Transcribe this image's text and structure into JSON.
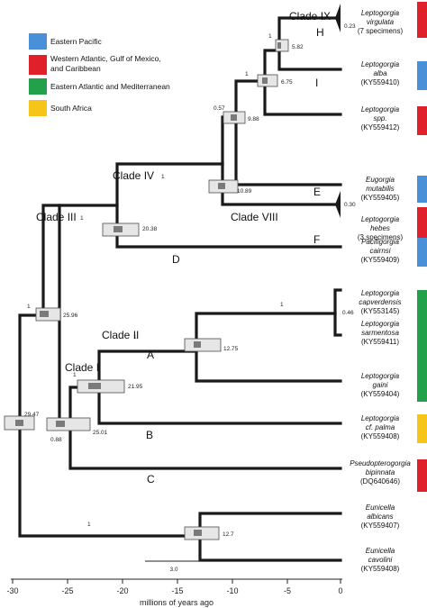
{
  "legend": [
    {
      "color": "#4a90d9",
      "label": "Eastern Pacific"
    },
    {
      "color": "#e0202b",
      "label": "Western Atlantic, Gulf of Mexico,"
    },
    {
      "color": "#e0202b",
      "label": "and Caribbean"
    },
    {
      "color": "#22a04a",
      "label": "Eastern Atlantic and Mediterranean"
    },
    {
      "color": "#f5c51a",
      "label": "South Africa"
    }
  ],
  "clades": {
    "ix": "Clade IX",
    "iv": "Clade IV",
    "iii": "Clade III",
    "viii": "Clade VIII",
    "ii": "Clade II",
    "i": "Clade I"
  },
  "letters": {
    "h": "H",
    "i": "I",
    "e": "E",
    "f": "F",
    "d": "D",
    "a": "A",
    "b": "B",
    "c": "C"
  },
  "node_ages": {
    "n582": "5.82",
    "n675": "6.75",
    "n988": "9.88",
    "n1089": "10.89",
    "n2038": "20.38",
    "n2596": "25.96",
    "n2947": "29.47",
    "n1275": "12.75",
    "n2195": "21.95",
    "n2501": "25.01",
    "n127": "12.7",
    "n023": "0.23",
    "n030": "0.30",
    "n046": "0.46"
  },
  "support": {
    "s1_ix": "1",
    "s1_c": "1",
    "s057": "0.57",
    "s1_iv": "1",
    "s1_iii": "1",
    "s1_root": "1",
    "s1_2596": "1",
    "s1_ii": "1",
    "s1_i": "1",
    "s088": "0.88",
    "s1_euni": "1",
    "s1_ix2": "1"
  },
  "tips": [
    {
      "l1": "Leptogorgia",
      "l2": "virgulata",
      "l3": "(7 specimens)",
      "region": "red"
    },
    {
      "l1": "Leptogorgia",
      "l2": "alba",
      "l3": "(KY559410)",
      "region": "blue"
    },
    {
      "l1": "Leptogorgia",
      "l2": "spp.",
      "l3": "(KY559412)",
      "region": "red"
    },
    {
      "l1": "Eugorgia",
      "l2": "mutabilis",
      "l3": "(KY559405)",
      "region": "blue"
    },
    {
      "l1": "Leptogorgia",
      "l2": "hebes",
      "l3": "(3 specimens)",
      "region": "red"
    },
    {
      "l1": "Pacifigorgia",
      "l2": "cairnsi",
      "l3": "(KY559409)",
      "region": "blue"
    },
    {
      "l1": "Leptogorgia",
      "l2": "capverdensis",
      "l3": "(KY553145)",
      "region": "green"
    },
    {
      "l1": "Leptogorgia",
      "l2": "sarmentosa",
      "l3": "(KY559411)",
      "region": "green"
    },
    {
      "l1": "Leptogorgia",
      "l2": "gaini",
      "l3": "(KY559404)",
      "region": "green"
    },
    {
      "l1": "Leptogorgia",
      "l2": "cf. palma",
      "l3": "(KY559408)",
      "region": "yellow"
    },
    {
      "l1": "Pseudopterogorgia",
      "l2": "bipinnata",
      "l3": "(DQ640646)",
      "region": "red"
    },
    {
      "l1": "Eunicella",
      "l2": "albicans",
      "l3": "(KY559407)",
      "region": "green"
    },
    {
      "l1": "Eunicella",
      "l2": "cavolini",
      "l3": "(KY559408)",
      "region": "green"
    }
  ],
  "scale_bar": "3.0",
  "axis": {
    "label": "millions of years ago",
    "ticks": [
      "-30",
      "-25",
      "-20",
      "-15",
      "-10",
      "-5",
      "0"
    ]
  }
}
